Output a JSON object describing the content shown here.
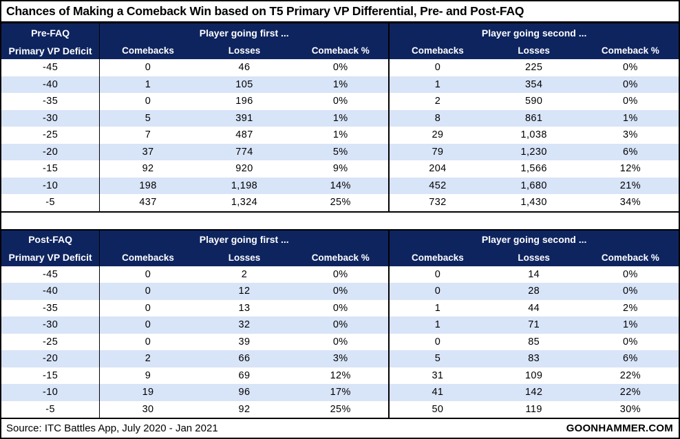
{
  "title": "Chances of Making a Comeback Win based on T5 Primary VP Differential, Pre- and Post-FAQ",
  "colors": {
    "header_bg": "#0e245f",
    "stripe": "#d8e4f7",
    "border": "#000000"
  },
  "chart_data": [
    {
      "type": "table",
      "title": "Pre-FAQ",
      "row_label": "Primary VP Deficit",
      "groups": [
        "Player going first ...",
        "Player going second ..."
      ],
      "sub_columns": [
        "Comebacks",
        "Losses",
        "Comeback %"
      ],
      "rows": [
        {
          "deficit": "-45",
          "first": [
            "0",
            "46",
            "0%"
          ],
          "second": [
            "0",
            "225",
            "0%"
          ]
        },
        {
          "deficit": "-40",
          "first": [
            "1",
            "105",
            "1%"
          ],
          "second": [
            "1",
            "354",
            "0%"
          ]
        },
        {
          "deficit": "-35",
          "first": [
            "0",
            "196",
            "0%"
          ],
          "second": [
            "2",
            "590",
            "0%"
          ]
        },
        {
          "deficit": "-30",
          "first": [
            "5",
            "391",
            "1%"
          ],
          "second": [
            "8",
            "861",
            "1%"
          ]
        },
        {
          "deficit": "-25",
          "first": [
            "7",
            "487",
            "1%"
          ],
          "second": [
            "29",
            "1,038",
            "3%"
          ]
        },
        {
          "deficit": "-20",
          "first": [
            "37",
            "774",
            "5%"
          ],
          "second": [
            "79",
            "1,230",
            "6%"
          ]
        },
        {
          "deficit": "-15",
          "first": [
            "92",
            "920",
            "9%"
          ],
          "second": [
            "204",
            "1,566",
            "12%"
          ]
        },
        {
          "deficit": "-10",
          "first": [
            "198",
            "1,198",
            "14%"
          ],
          "second": [
            "452",
            "1,680",
            "21%"
          ]
        },
        {
          "deficit": "-5",
          "first": [
            "437",
            "1,324",
            "25%"
          ],
          "second": [
            "732",
            "1,430",
            "34%"
          ]
        }
      ]
    },
    {
      "type": "table",
      "title": "Post-FAQ",
      "row_label": "Primary VP Deficit",
      "groups": [
        "Player going first ...",
        "Player going second ..."
      ],
      "sub_columns": [
        "Comebacks",
        "Losses",
        "Comeback %"
      ],
      "rows": [
        {
          "deficit": "-45",
          "first": [
            "0",
            "2",
            "0%"
          ],
          "second": [
            "0",
            "14",
            "0%"
          ]
        },
        {
          "deficit": "-40",
          "first": [
            "0",
            "12",
            "0%"
          ],
          "second": [
            "0",
            "28",
            "0%"
          ]
        },
        {
          "deficit": "-35",
          "first": [
            "0",
            "13",
            "0%"
          ],
          "second": [
            "1",
            "44",
            "2%"
          ]
        },
        {
          "deficit": "-30",
          "first": [
            "0",
            "32",
            "0%"
          ],
          "second": [
            "1",
            "71",
            "1%"
          ]
        },
        {
          "deficit": "-25",
          "first": [
            "0",
            "39",
            "0%"
          ],
          "second": [
            "0",
            "85",
            "0%"
          ]
        },
        {
          "deficit": "-20",
          "first": [
            "2",
            "66",
            "3%"
          ],
          "second": [
            "5",
            "83",
            "6%"
          ]
        },
        {
          "deficit": "-15",
          "first": [
            "9",
            "69",
            "12%"
          ],
          "second": [
            "31",
            "109",
            "22%"
          ]
        },
        {
          "deficit": "-10",
          "first": [
            "19",
            "96",
            "17%"
          ],
          "second": [
            "41",
            "142",
            "22%"
          ]
        },
        {
          "deficit": "-5",
          "first": [
            "30",
            "92",
            "25%"
          ],
          "second": [
            "50",
            "119",
            "30%"
          ]
        }
      ]
    }
  ],
  "footer": {
    "source": "Source: ITC Battles App, July 2020 - Jan 2021",
    "brand": "GOONHAMMER.COM"
  }
}
